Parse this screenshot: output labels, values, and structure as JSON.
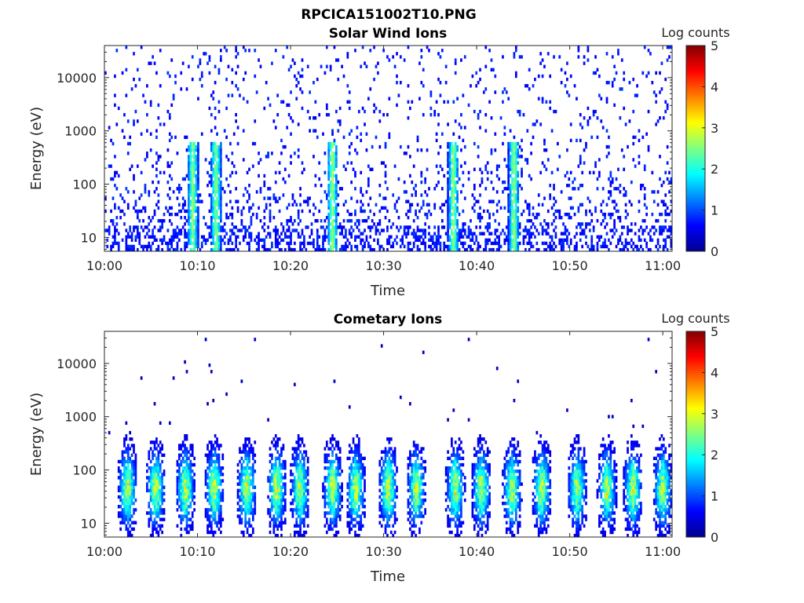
{
  "figure": {
    "title": "RPCICA151002T10.PNG"
  },
  "colormap": [
    "#00008f",
    "#0000ff",
    "#0080ff",
    "#00ffff",
    "#80ff80",
    "#ffff00",
    "#ff8000",
    "#ff0000",
    "#800000"
  ],
  "chart_data": [
    {
      "type": "heatmap",
      "title": "Solar Wind Ions",
      "xlabel": "Time",
      "ylabel": "Energy (eV)",
      "x_ticks": [
        "10:00",
        "10:10",
        "10:20",
        "10:30",
        "10:40",
        "10:50",
        "11:00"
      ],
      "x_range": [
        "10:00",
        "11:01"
      ],
      "y_scale": "log",
      "y_ticks": [
        10,
        100,
        1000,
        10000
      ],
      "y_range": [
        5.5,
        40000
      ],
      "colorbar": {
        "label": "Log counts",
        "range": [
          0,
          5
        ],
        "ticks": [
          0,
          1,
          2,
          3,
          4,
          5
        ]
      },
      "hot_times_min": [
        9.5,
        12.0,
        24.5,
        37.5,
        44.0
      ],
      "hot_peak_log_counts": 2.0,
      "background_log_counts": 0.5
    },
    {
      "type": "heatmap",
      "title": "Cometary Ions",
      "xlabel": "Time",
      "ylabel": "Energy (eV)",
      "x_ticks": [
        "10:00",
        "10:10",
        "10:20",
        "10:30",
        "10:40",
        "10:50",
        "11:00"
      ],
      "x_range": [
        "10:00",
        "11:01"
      ],
      "y_scale": "log",
      "y_ticks": [
        10,
        100,
        1000,
        10000
      ],
      "y_range": [
        5.5,
        40000
      ],
      "colorbar": {
        "label": "Log counts",
        "range": [
          0,
          5
        ],
        "ticks": [
          0,
          1,
          2,
          3,
          4,
          5
        ]
      },
      "bursts_min": [
        2.5,
        5.5,
        8.7,
        11.8,
        15.3,
        18.5,
        21.0,
        24.5,
        27.0,
        30.5,
        33.5,
        37.7,
        40.5,
        43.8,
        47.0,
        50.8,
        54.0,
        56.8,
        60.0
      ],
      "burst_peak_energy_ev": 45,
      "burst_peak_log_counts": 2.8
    }
  ]
}
